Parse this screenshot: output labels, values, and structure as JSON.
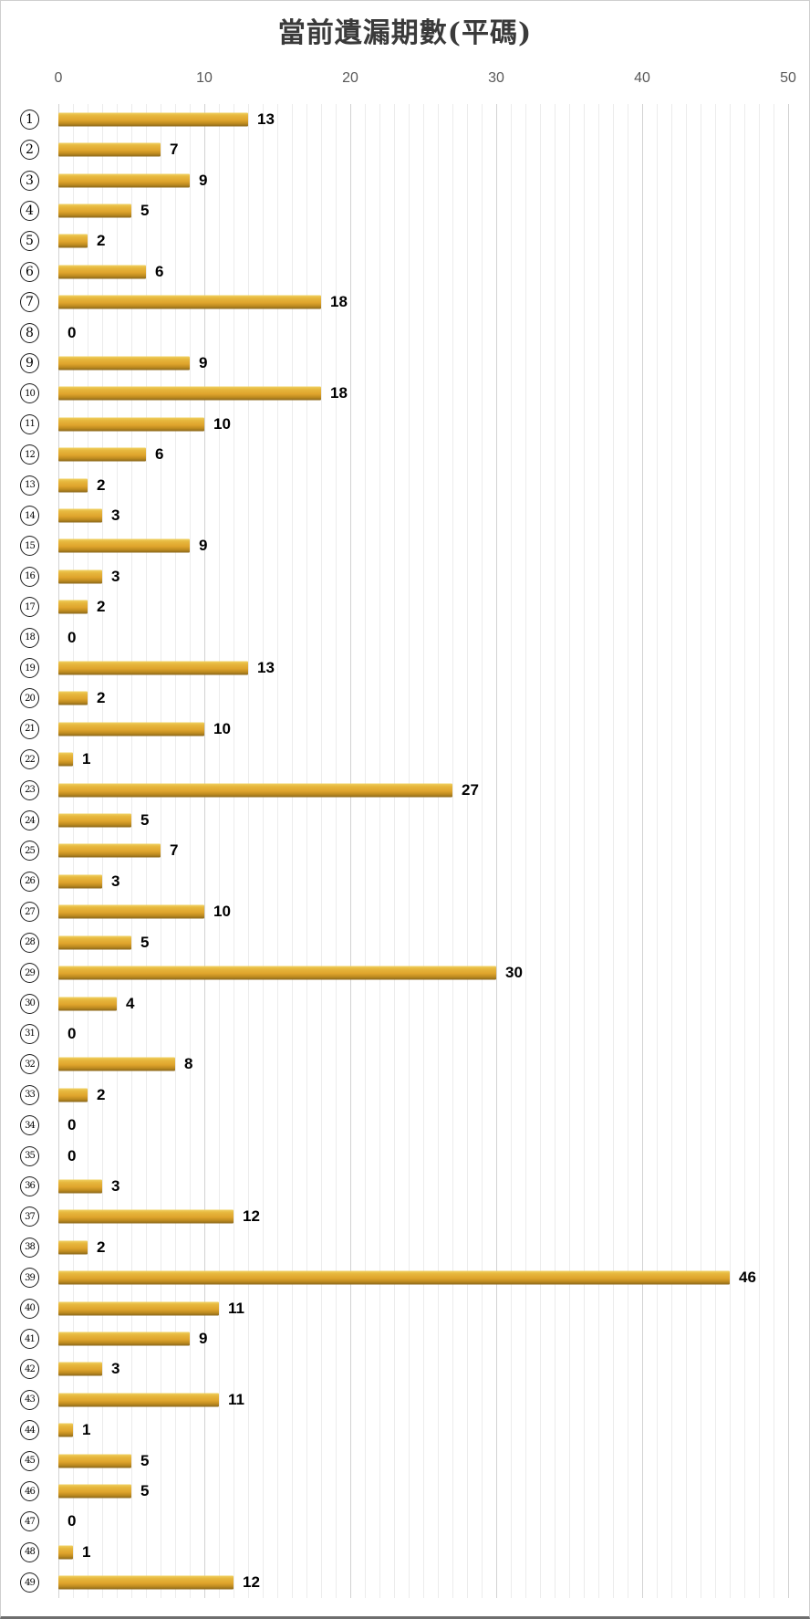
{
  "title": "當前遺漏期數(平碼)",
  "chart_data": {
    "type": "bar",
    "orientation": "horizontal",
    "title": "當前遺漏期數(平碼)",
    "categories": [
      1,
      2,
      3,
      4,
      5,
      6,
      7,
      8,
      9,
      10,
      11,
      12,
      13,
      14,
      15,
      16,
      17,
      18,
      19,
      20,
      21,
      22,
      23,
      24,
      25,
      26,
      27,
      28,
      29,
      30,
      31,
      32,
      33,
      34,
      35,
      36,
      37,
      38,
      39,
      40,
      41,
      42,
      43,
      44,
      45,
      46,
      47,
      48,
      49
    ],
    "category_style": "circled-number",
    "values": [
      13,
      7,
      9,
      5,
      2,
      6,
      18,
      0,
      9,
      18,
      10,
      6,
      2,
      3,
      9,
      3,
      2,
      0,
      13,
      2,
      10,
      1,
      27,
      5,
      7,
      3,
      10,
      5,
      30,
      4,
      0,
      8,
      2,
      0,
      0,
      3,
      12,
      2,
      46,
      11,
      9,
      3,
      11,
      1,
      5,
      5,
      0,
      1,
      12
    ],
    "xlabel": "",
    "ylabel": "",
    "xlim": [
      0,
      50
    ],
    "x_ticks": [
      0,
      10,
      20,
      30,
      40,
      50
    ],
    "x_axis_position": "top",
    "grid": "on",
    "gridline_minor_step": 1,
    "gridline_major_step": 10,
    "legend": "none",
    "data_labels": "outside-end",
    "colors": {
      "bar": "#DFA42C",
      "bar_top": "#F0D264",
      "bar_bottom": "#8A671B",
      "data_label": "#000000",
      "tick_label": "#595959",
      "gridline_minor": "#ECECEC",
      "gridline_major": "#D2D2D2",
      "title": "#3A3A3A",
      "background": "#FFFFFF"
    }
  }
}
